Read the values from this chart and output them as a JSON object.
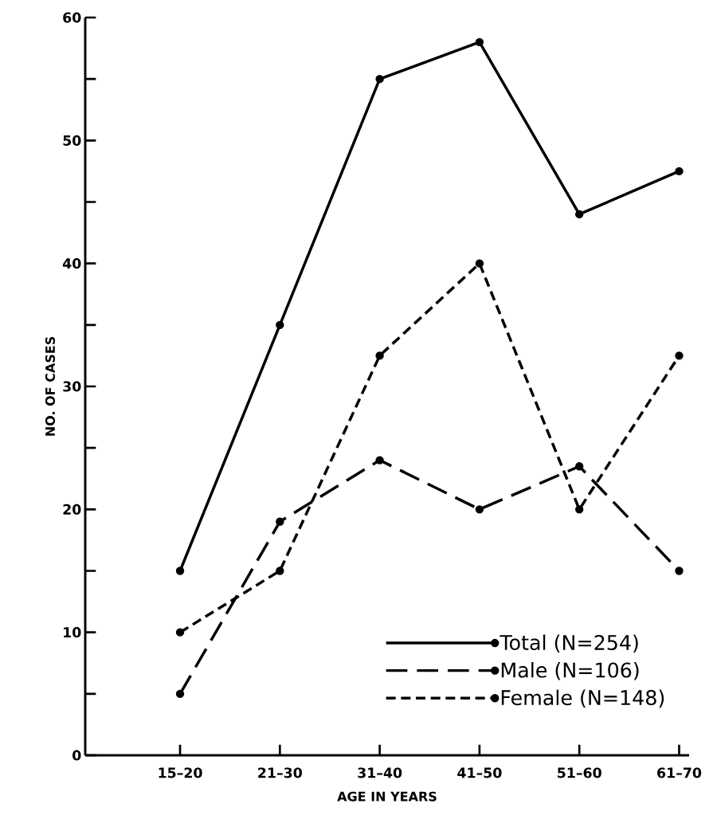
{
  "chart_data": {
    "type": "line",
    "xlabel": "AGE IN YEARS",
    "ylabel": "NO. OF CASES",
    "categories": [
      "15–20",
      "21–30",
      "31–40",
      "41–50",
      "51–60",
      "61–70"
    ],
    "series": [
      {
        "name": "Total (N=254)",
        "color": "#000000",
        "line_style": "solid",
        "values": [
          15,
          35,
          55,
          58,
          44,
          47.5
        ]
      },
      {
        "name": "Male (N=106)",
        "color": "#000000",
        "line_style": "long dashed",
        "values": [
          5,
          19,
          24,
          20,
          23.5,
          15
        ]
      },
      {
        "name": "Female (N=148)",
        "color": "#000000",
        "line_style": "dashed",
        "values": [
          10,
          15,
          32.5,
          40,
          20,
          32.5
        ]
      }
    ],
    "ylim": [
      0,
      60
    ],
    "yticks": [
      {
        "value": 0,
        "label": "0"
      },
      {
        "value": 5,
        "label": null
      },
      10,
      {
        "value": 15,
        "label": null
      },
      20,
      {
        "value": 25,
        "label": null
      },
      30,
      {
        "value": 35,
        "label": null
      },
      40,
      {
        "value": 45,
        "label": null
      },
      50,
      {
        "value": 55,
        "label": null
      },
      60
    ],
    "grid": false,
    "legend": "bottom right",
    "marker": "circle"
  }
}
